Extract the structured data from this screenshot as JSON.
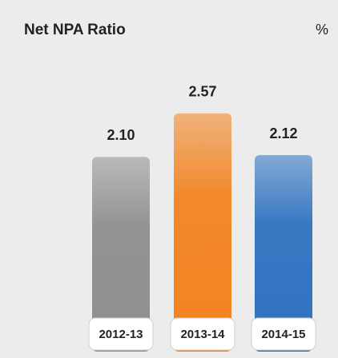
{
  "chart_data": {
    "type": "bar",
    "title": "Net NPA Ratio",
    "unit": "%",
    "categories": [
      "2012-13",
      "2013-14",
      "2014-15"
    ],
    "values": [
      2.1,
      2.57,
      2.12
    ],
    "value_labels": [
      "2.10",
      "2.57",
      "2.12"
    ],
    "colors": [
      "#8f8f8f",
      "#f28320",
      "#2f72c0"
    ]
  }
}
